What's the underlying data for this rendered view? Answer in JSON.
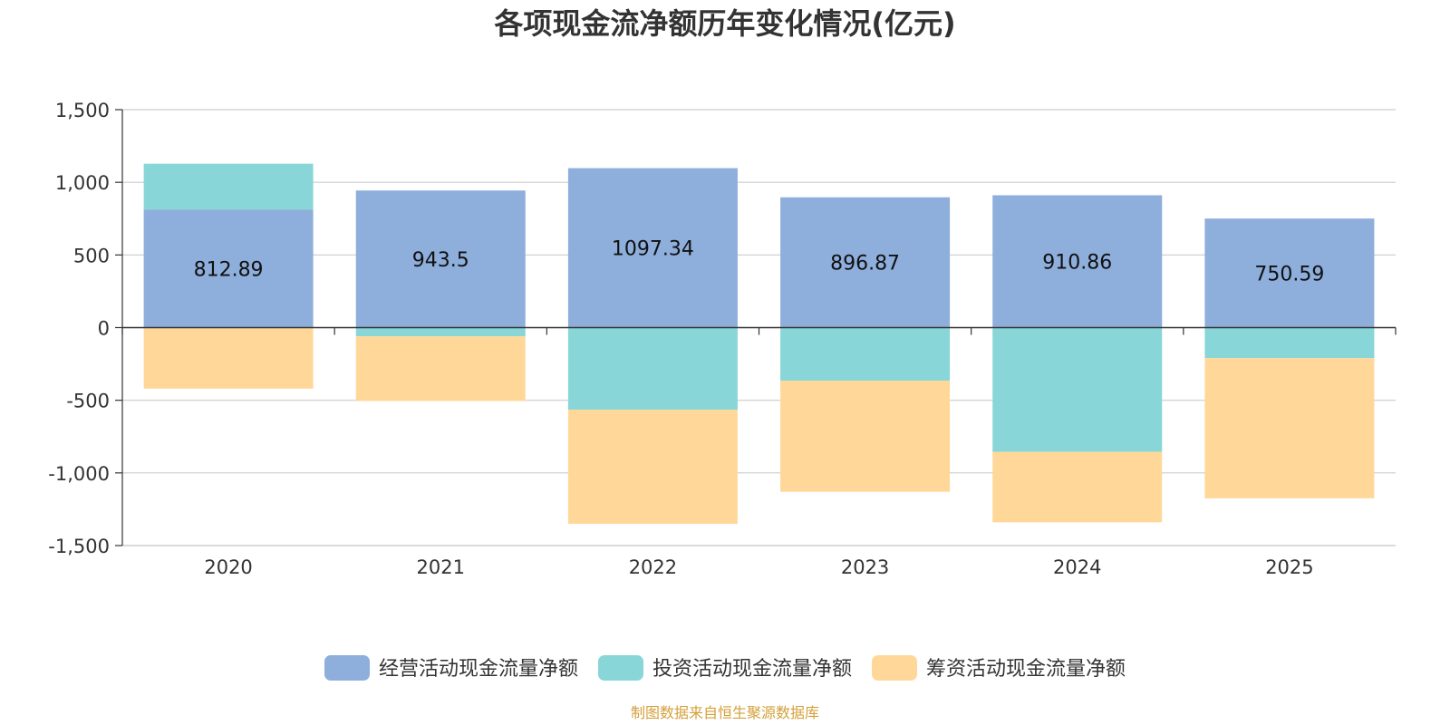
{
  "chart_data": {
    "type": "bar",
    "stacked": true,
    "title": "各项现金流净额历年变化情况(亿元)",
    "categories": [
      "2020",
      "2021",
      "2022",
      "2023",
      "2024",
      "2025"
    ],
    "series": [
      {
        "name": "经营活动现金流量净额",
        "color": "#8eaedc",
        "values": [
          812.89,
          943.5,
          1097.34,
          896.87,
          910.86,
          750.59
        ]
      },
      {
        "name": "投资活动现金流量净额",
        "color": "#88d6d8",
        "values": [
          315,
          -60,
          -565,
          -365,
          -855,
          -210
        ]
      },
      {
        "name": "筹资活动现金流量净额",
        "color": "#ffd899",
        "values": [
          -420,
          -445,
          -785,
          -765,
          -485,
          -965
        ]
      }
    ],
    "data_labels": [
      "812.89",
      "943.5",
      "1097.34",
      "896.87",
      "910.86",
      "750.59"
    ],
    "ylim": [
      -1500,
      1500
    ],
    "yticks": [
      1500,
      1000,
      500,
      0,
      -500,
      -1000,
      -1500
    ],
    "ytick_labels": [
      "1,500",
      "1,000",
      "500",
      "0",
      "-500",
      "-1,000",
      "-1,500"
    ],
    "grid": true,
    "legend_position": "bottom",
    "source": "制图数据来自恒生聚源数据库",
    "source_color": "#d4a03a"
  }
}
